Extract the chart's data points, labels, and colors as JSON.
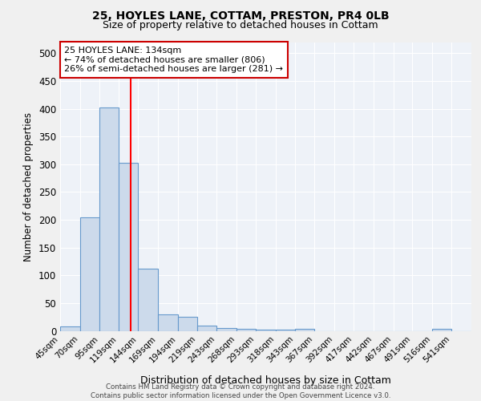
{
  "title_line1": "25, HOYLES LANE, COTTAM, PRESTON, PR4 0LB",
  "title_line2": "Size of property relative to detached houses in Cottam",
  "xlabel": "Distribution of detached houses by size in Cottam",
  "ylabel": "Number of detached properties",
  "bar_labels": [
    "45sqm",
    "70sqm",
    "95sqm",
    "119sqm",
    "144sqm",
    "169sqm",
    "194sqm",
    "219sqm",
    "243sqm",
    "268sqm",
    "293sqm",
    "318sqm",
    "343sqm",
    "367sqm",
    "392sqm",
    "417sqm",
    "442sqm",
    "467sqm",
    "491sqm",
    "516sqm",
    "541sqm"
  ],
  "bar_values": [
    8,
    204,
    403,
    302,
    112,
    30,
    26,
    9,
    5,
    3,
    2,
    2,
    3,
    0,
    0,
    0,
    0,
    0,
    0,
    4,
    0
  ],
  "bar_color": "#ccdaeb",
  "bar_edge_color": "#6699cc",
  "ylim": [
    0,
    520
  ],
  "yticks": [
    0,
    50,
    100,
    150,
    200,
    250,
    300,
    350,
    400,
    450,
    500
  ],
  "bg_color": "#eef2f8",
  "grid_color": "#ffffff",
  "red_line_x": 134,
  "annotation_line1": "25 HOYLES LANE: 134sqm",
  "annotation_line2": "← 74% of detached houses are smaller (806)",
  "annotation_line3": "26% of semi-detached houses are larger (281) →",
  "annotation_box_color": "#ffffff",
  "annotation_box_edge": "#cc0000",
  "footer_line1": "Contains HM Land Registry data © Crown copyright and database right 2024.",
  "footer_line2": "Contains public sector information licensed under the Open Government Licence v3.0."
}
